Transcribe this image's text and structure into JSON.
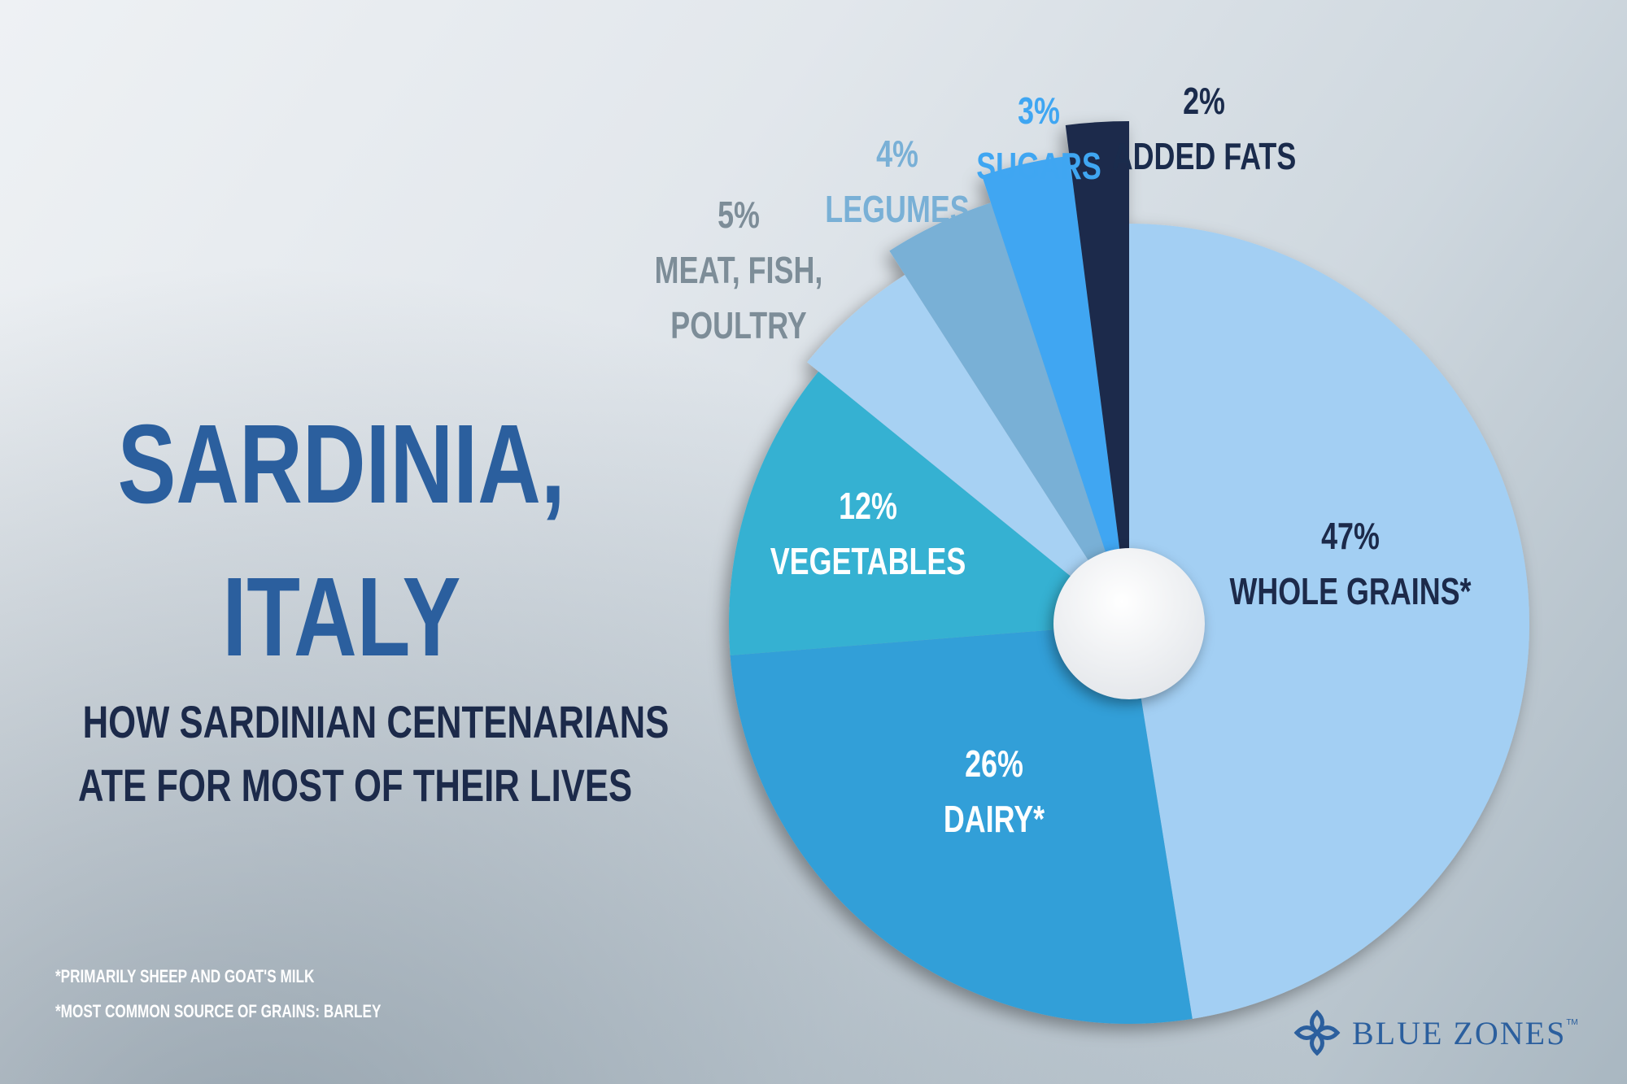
{
  "title": {
    "line1": "SARDINIA,",
    "line2": "ITALY"
  },
  "subtitle": {
    "line1": "HOW SARDINIAN CENTENARIANS",
    "line2": "ATE FOR MOST OF THEIR LIVES"
  },
  "footnotes": [
    "*PRIMARILY SHEEP AND GOAT'S MILK",
    "*MOST COMMON SOURCE OF GRAINS: BARLEY"
  ],
  "logo": {
    "text": "BLUE ZONES",
    "tm": "TM",
    "icon": "blue-zones-logo-icon"
  },
  "colors": {
    "title": "#2b5f9e",
    "subtitle": "#1c2a4a"
  },
  "chart_data": {
    "type": "pie",
    "legend": "none",
    "direction": "clockwise-from-top",
    "slices": [
      {
        "value": 47,
        "pct_label": "47%",
        "label_lines": [
          "WHOLE GRAINS*"
        ],
        "color": "#a3cff3",
        "label_color": "#1c2a4a"
      },
      {
        "value": 26,
        "pct_label": "26%",
        "label_lines": [
          "DAIRY*"
        ],
        "color": "#329fd8",
        "label_color": "#ffffff"
      },
      {
        "value": 12,
        "pct_label": "12%",
        "label_lines": [
          "VEGETABLES"
        ],
        "color": "#35b1d2",
        "label_color": "#ffffff"
      },
      {
        "value": 5,
        "pct_label": "5%",
        "label_lines": [
          "MEAT, FISH,",
          "POULTRY"
        ],
        "color": "#a7d1f3",
        "label_color": "#7d8d98"
      },
      {
        "value": 4,
        "pct_label": "4%",
        "label_lines": [
          "LEGUMES"
        ],
        "color": "#79b0d6",
        "label_color": "#79b0d6"
      },
      {
        "value": 3,
        "pct_label": "3%",
        "label_lines": [
          "SUGARS"
        ],
        "color": "#3fa6f2",
        "label_color": "#3fa6f2"
      },
      {
        "value": 2,
        "pct_label": "2%",
        "label_lines": [
          "ADDED FATS"
        ],
        "color": "#1a2b4c",
        "label_color": "#1a2b4c"
      }
    ]
  }
}
